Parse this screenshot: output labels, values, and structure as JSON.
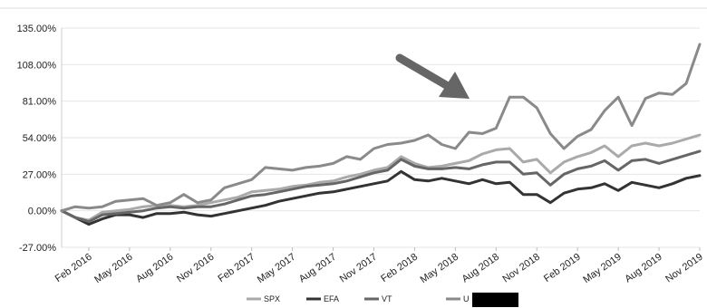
{
  "chart_data": {
    "type": "line",
    "title": "",
    "xlabel": "",
    "ylabel": "",
    "ylim": [
      -27,
      135
    ],
    "y_ticks": [
      "135.00%",
      "108.00%",
      "81.00%",
      "54.00%",
      "27.00%",
      "0.00%",
      "-27.00%"
    ],
    "y_tick_values": [
      135,
      108,
      81,
      54,
      27,
      0,
      -27
    ],
    "x_tick_labels": [
      "Feb 2016",
      "May 2016",
      "Aug 2016",
      "Nov 2016",
      "Feb 2017",
      "May 2017",
      "Aug 2017",
      "Nov 2017",
      "Feb 2018",
      "May 2018",
      "Aug 2018",
      "Nov 2018",
      "Feb 2019",
      "May 2019",
      "Aug 2019",
      "Nov 2019"
    ],
    "x_range": [
      "2015-12",
      "2019-11"
    ],
    "grid": "horizontal",
    "legend_position": "bottom",
    "annotation": "arrow pointing to the peak around Aug–Sep 2018",
    "series": [
      {
        "name": "SPX",
        "color": "#aaaaaa",
        "values": [
          0,
          -5,
          -7,
          -1,
          0,
          1,
          3,
          4,
          4,
          3,
          4,
          6,
          8,
          10,
          14,
          15,
          16,
          18,
          19,
          21,
          22,
          25,
          27,
          30,
          32,
          40,
          35,
          32,
          33,
          35,
          37,
          42,
          45,
          46,
          36,
          38,
          28,
          36,
          40,
          43,
          48,
          40,
          48,
          50,
          48,
          50,
          53,
          56
        ]
      },
      {
        "name": "EFA",
        "color": "#333333",
        "values": [
          0,
          -5,
          -10,
          -6,
          -3,
          -3,
          -5,
          -2,
          -2,
          -1,
          -3,
          -4,
          -2,
          0,
          2,
          4,
          7,
          9,
          11,
          13,
          14,
          16,
          18,
          20,
          22,
          29,
          23,
          22,
          24,
          22,
          20,
          23,
          20,
          21,
          12,
          12,
          6,
          13,
          16,
          17,
          20,
          15,
          21,
          19,
          17,
          20,
          24,
          26
        ]
      },
      {
        "name": "VT",
        "color": "#666666",
        "values": [
          0,
          -5,
          -8,
          -3,
          -2,
          -1,
          0,
          2,
          3,
          2,
          3,
          3,
          5,
          8,
          11,
          12,
          14,
          16,
          18,
          19,
          20,
          22,
          25,
          28,
          30,
          38,
          33,
          31,
          31,
          32,
          31,
          34,
          36,
          36,
          27,
          28,
          19,
          27,
          31,
          33,
          37,
          30,
          37,
          38,
          35,
          38,
          41,
          44
        ]
      },
      {
        "name": "U",
        "color": "#8a8a8a",
        "values": [
          0,
          3,
          2,
          3,
          7,
          8,
          9,
          4,
          6,
          12,
          6,
          8,
          17,
          20,
          23,
          32,
          31,
          30,
          32,
          33,
          35,
          40,
          38,
          46,
          49,
          50,
          52,
          56,
          49,
          46,
          58,
          57,
          61,
          84,
          84,
          76,
          57,
          46,
          55,
          60,
          74,
          84,
          63,
          83,
          87,
          86,
          94,
          123
        ]
      }
    ]
  }
}
